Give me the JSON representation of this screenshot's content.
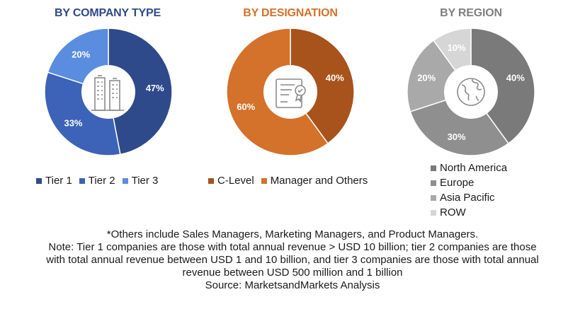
{
  "chart_data": [
    {
      "type": "pie",
      "title": "BY COMPANY TYPE",
      "categories": [
        "Tier 1",
        "Tier 2",
        "Tier 3"
      ],
      "values": [
        47,
        33,
        20
      ],
      "labels": [
        "47%",
        "33%",
        "20%"
      ],
      "colors": [
        "#2e4a8a",
        "#3d63b8",
        "#5a8de0"
      ],
      "icon": "office-building-icon",
      "legend": "bottom"
    },
    {
      "type": "pie",
      "title": "BY DESIGNATION",
      "categories": [
        "C-Level",
        "Manager and Others"
      ],
      "values": [
        40,
        60
      ],
      "labels": [
        "40%",
        "60%"
      ],
      "colors": [
        "#a8521c",
        "#d4712a"
      ],
      "icon": "certificate-document-icon",
      "legend": "bottom"
    },
    {
      "type": "pie",
      "title": "BY REGION",
      "categories": [
        "North America",
        "Europe",
        "Asia Pacific",
        "ROW"
      ],
      "values": [
        40,
        30,
        20,
        10
      ],
      "labels": [
        "40%",
        "30%",
        "20%",
        "10%"
      ],
      "colors": [
        "#7a7a7a",
        "#8f8f8f",
        "#a9a9a9",
        "#d6d6d6"
      ],
      "icon": "globe-icon",
      "legend": "bottom-right"
    }
  ],
  "notes": {
    "line1": "*Others include Sales Managers, Marketing Managers, and Product Managers.",
    "line2": "Note: Tier 1 companies are those with total annual revenue > USD 10 billion; tier 2 companies are those",
    "line3": "with total annual revenue between USD 1 and 10 billion, and tier 3 companies are those with total annual",
    "line4": "revenue between USD 500 million and 1 billion",
    "line5": "Source: MarketsandMarkets Analysis"
  }
}
